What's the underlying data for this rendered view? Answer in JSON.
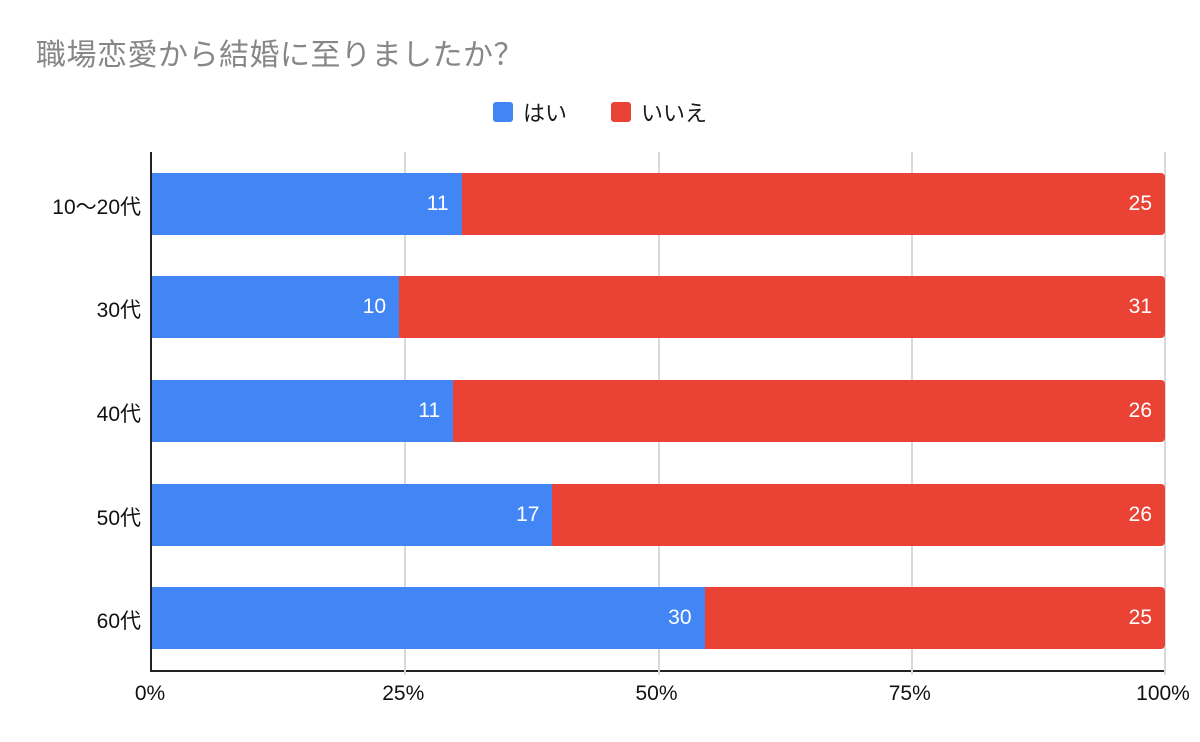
{
  "title": "職場恋愛から結婚に至りましたか？",
  "colors": {
    "series_yes": "#4285F4",
    "series_no": "#EA4335",
    "title_text": "#878787",
    "axis_line": "#222222",
    "gridline": "#d9d9d9",
    "bar_value_text": "#ffffff",
    "background": "#ffffff"
  },
  "chart_data": {
    "type": "bar",
    "subtype": "horizontal_stacked_100_percent",
    "title": "職場恋愛から結婚に至りましたか？",
    "categories": [
      "10〜20代",
      "30代",
      "40代",
      "50代",
      "60代"
    ],
    "series": [
      {
        "name": "はい",
        "color": "#4285F4",
        "values": [
          11,
          10,
          11,
          17,
          30
        ]
      },
      {
        "name": "いいえ",
        "color": "#EA4335",
        "values": [
          25,
          31,
          26,
          26,
          25
        ]
      }
    ],
    "x_ticks_percent": [
      0,
      25,
      50,
      75,
      100
    ],
    "x_tick_labels": [
      "0%",
      "25%",
      "50%",
      "75%",
      "100%"
    ],
    "xlim": [
      0,
      100
    ],
    "grid": true,
    "legend_position": "top-center",
    "data_labels": "inside-end",
    "xlabel": "",
    "ylabel": ""
  }
}
